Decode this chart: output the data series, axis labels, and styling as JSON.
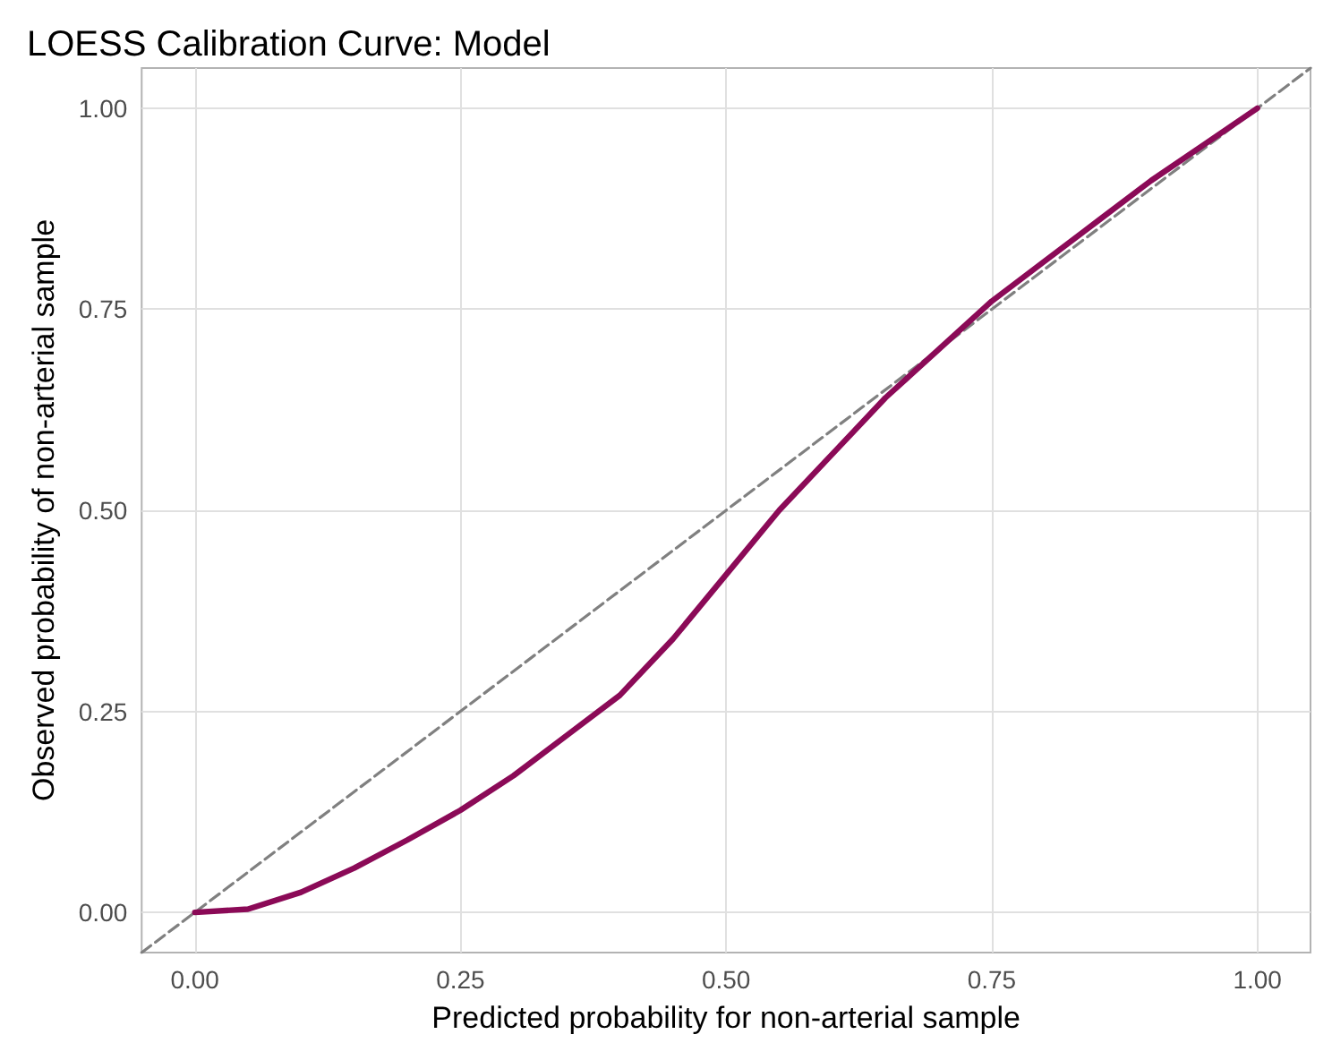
{
  "chart_data": {
    "type": "line",
    "title": "LOESS Calibration Curve: Model",
    "xlabel": "Predicted probability for non-arterial sample",
    "ylabel": "Observed probability of non-arterial sample",
    "xlim": [
      -0.05,
      1.05
    ],
    "ylim": [
      -0.05,
      1.05
    ],
    "xticks": [
      {
        "value": 0,
        "label": "0.00"
      },
      {
        "value": 0.25,
        "label": "0.25"
      },
      {
        "value": 0.5,
        "label": "0.50"
      },
      {
        "value": 0.75,
        "label": "0.75"
      },
      {
        "value": 1,
        "label": "1.00"
      }
    ],
    "yticks": [
      {
        "value": 0,
        "label": "0.00"
      },
      {
        "value": 0.25,
        "label": "0.25"
      },
      {
        "value": 0.5,
        "label": "0.50"
      },
      {
        "value": 0.75,
        "label": "0.75"
      },
      {
        "value": 1,
        "label": "1.00"
      }
    ],
    "grid": true,
    "marker": "none",
    "series": [
      {
        "color": "#808080",
        "line_style": "dashed",
        "x": [
          -0.05,
          1.05
        ],
        "values": [
          -0.05,
          1.05
        ]
      },
      {
        "color": "#8b0a57",
        "line_style": "solid",
        "x": [
          0,
          0.05,
          0.1,
          0.15,
          0.2,
          0.25,
          0.3,
          0.35,
          0.4,
          0.45,
          0.5,
          0.55,
          0.6,
          0.65,
          0.7,
          0.75,
          0.8,
          0.85,
          0.9,
          0.95,
          1
        ],
        "values": [
          0,
          0.004,
          0.025,
          0.055,
          0.09,
          0.127,
          0.17,
          0.22,
          0.27,
          0.34,
          0.42,
          0.5,
          0.57,
          0.64,
          0.7,
          0.76,
          0.81,
          0.86,
          0.91,
          0.955,
          1
        ]
      }
    ]
  }
}
